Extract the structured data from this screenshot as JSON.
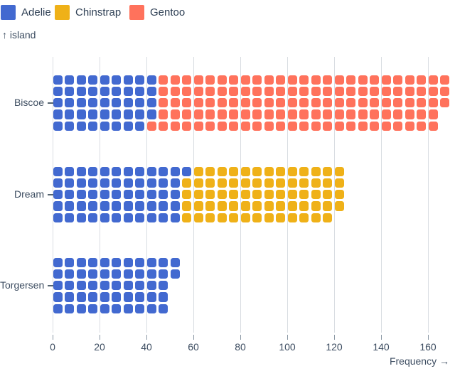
{
  "legend": {
    "items": [
      {
        "label": "Adelie",
        "color": "#4269d0"
      },
      {
        "label": "Chinstrap",
        "color": "#efb118"
      },
      {
        "label": "Gentoo",
        "color": "#ff725c"
      }
    ]
  },
  "y_axis_title": "↑ island",
  "x_axis_title": "Frequency →",
  "chart_data": {
    "type": "waffle-bar-horizontal",
    "title": "",
    "xlabel": "Frequency",
    "ylabel": "island",
    "unit": 1,
    "rows_per_column": 5,
    "grid": true,
    "legend_position": "top-left",
    "categories": [
      "Biscoe",
      "Dream",
      "Torgersen"
    ],
    "series": [
      {
        "name": "Adelie",
        "color": "#4269d0",
        "values": [
          44,
          56,
          52
        ]
      },
      {
        "name": "Chinstrap",
        "color": "#efb118",
        "values": [
          0,
          68,
          0
        ]
      },
      {
        "name": "Gentoo",
        "color": "#ff725c",
        "values": [
          124,
          0,
          0
        ]
      }
    ],
    "totals": [
      168,
      124,
      52
    ],
    "x_ticks": [
      0,
      20,
      40,
      60,
      80,
      100,
      120,
      140,
      160
    ],
    "xlim": [
      0,
      170
    ]
  },
  "colors": {
    "gridline": "#d9dde2",
    "tick_mark": "#8b98a5",
    "text": "#3d4d61"
  }
}
